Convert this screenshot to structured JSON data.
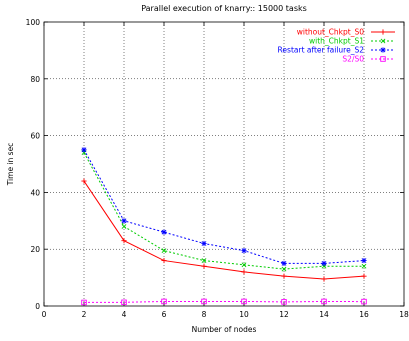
{
  "chart_data": {
    "type": "line",
    "title": "Parallel execution of knarry:: 15000 tasks",
    "xlabel": "Number of nodes",
    "ylabel": "Time in sec",
    "xlim": [
      0,
      18
    ],
    "ylim": [
      0,
      100
    ],
    "xticks": [
      0,
      2,
      4,
      6,
      8,
      10,
      12,
      14,
      16,
      18
    ],
    "yticks": [
      0,
      20,
      40,
      60,
      80,
      100
    ],
    "grid": true,
    "legend_position": "top-right",
    "x": [
      2,
      4,
      6,
      8,
      10,
      12,
      14,
      16
    ],
    "series": [
      {
        "name": "without_Chkpt_S0",
        "color": "#ff0000",
        "dashed": false,
        "marker": "plus",
        "values": [
          44,
          23,
          16,
          14,
          12,
          10.5,
          9.5,
          10.5
        ]
      },
      {
        "name": "with_Chkpt_S1",
        "color": "#00cc00",
        "dashed": true,
        "marker": "cross",
        "values": [
          54,
          28,
          19.5,
          16,
          14.5,
          13,
          14,
          14
        ]
      },
      {
        "name": "Restart after failure_S2",
        "color": "#0000ff",
        "dashed": true,
        "marker": "star",
        "values": [
          55,
          30,
          26,
          22,
          19.5,
          15,
          15,
          16
        ]
      },
      {
        "name": "S2/S0",
        "color": "#ff00ff",
        "dashed": true,
        "marker": "square",
        "values": [
          1.25,
          1.3,
          1.6,
          1.6,
          1.6,
          1.45,
          1.6,
          1.55
        ]
      }
    ]
  }
}
